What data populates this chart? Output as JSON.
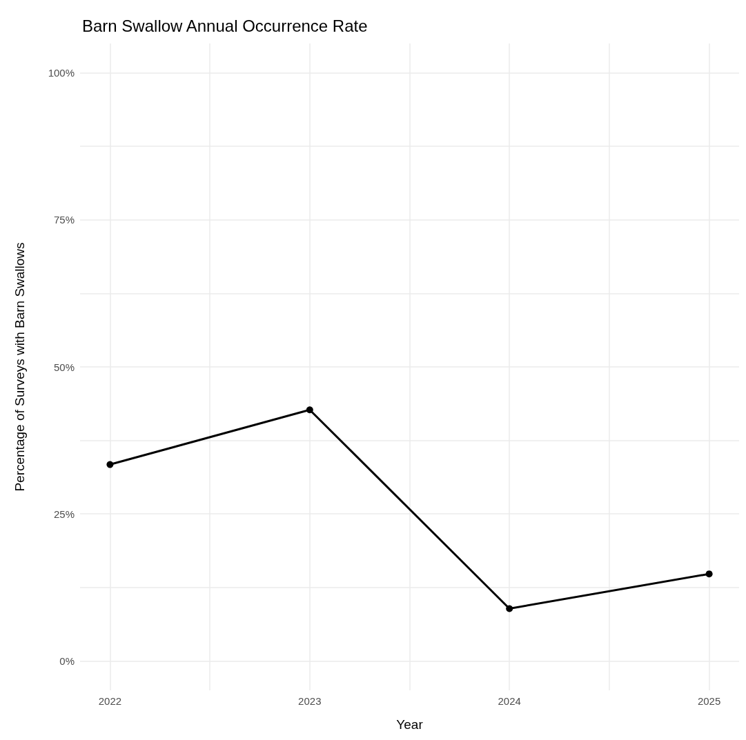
{
  "chart_data": {
    "type": "line",
    "title": "Barn Swallow Annual Occurrence Rate",
    "xlabel": "Year",
    "ylabel": "Percentage of Surveys with Barn Swallows",
    "x": [
      2022,
      2023,
      2024,
      2025
    ],
    "series": [
      {
        "color": "#000000",
        "values": [
          33.4,
          42.7,
          8.9,
          14.8
        ]
      }
    ],
    "xlim": [
      2021.85,
      2025.15
    ],
    "xticks": [
      2022,
      {
        "value": 2022.5,
        "label": null
      },
      2023,
      {
        "value": 2023.5,
        "label": null
      },
      2024,
      {
        "value": 2024.5,
        "label": null
      },
      2025
    ],
    "ylim": [
      -5,
      105
    ],
    "yticks": [
      {
        "value": 0,
        "label": "0%"
      },
      {
        "value": 12.5,
        "label": null
      },
      {
        "value": 25,
        "label": "25%"
      },
      {
        "value": 37.5,
        "label": null
      },
      {
        "value": 50,
        "label": "50%"
      },
      {
        "value": 62.5,
        "label": null
      },
      {
        "value": 75,
        "label": "75%"
      },
      {
        "value": 87.5,
        "label": null
      },
      {
        "value": 100,
        "label": "100%"
      }
    ],
    "grid": true,
    "marker": "circle",
    "line_style": "solid"
  }
}
